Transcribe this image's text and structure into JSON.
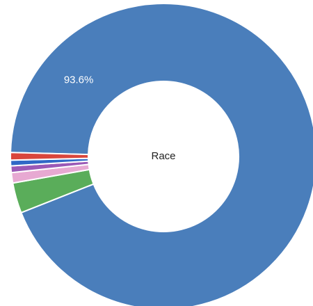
{
  "chart_data": {
    "type": "pie",
    "subtype": "donut",
    "center_label": "Race",
    "slices": [
      {
        "label": "",
        "value": 93.6,
        "display_label": "93.6%",
        "color": "#4a7ebb"
      },
      {
        "label": "",
        "value": 3.2,
        "display_label": "",
        "color": "#5aad5a"
      },
      {
        "label": "",
        "value": 1.1,
        "display_label": "",
        "color": "#e7a9d2"
      },
      {
        "label": "",
        "value": 0.7,
        "display_label": "",
        "color": "#9b59b6"
      },
      {
        "label": "",
        "value": 0.6,
        "display_label": "",
        "color": "#2f68c6"
      },
      {
        "label": "",
        "value": 0.8,
        "display_label": "",
        "color": "#d9463c"
      }
    ],
    "legend": "none",
    "colors": {
      "background": "#ffffff",
      "slice_label": "#ffffff",
      "center_label": "#222222"
    }
  }
}
